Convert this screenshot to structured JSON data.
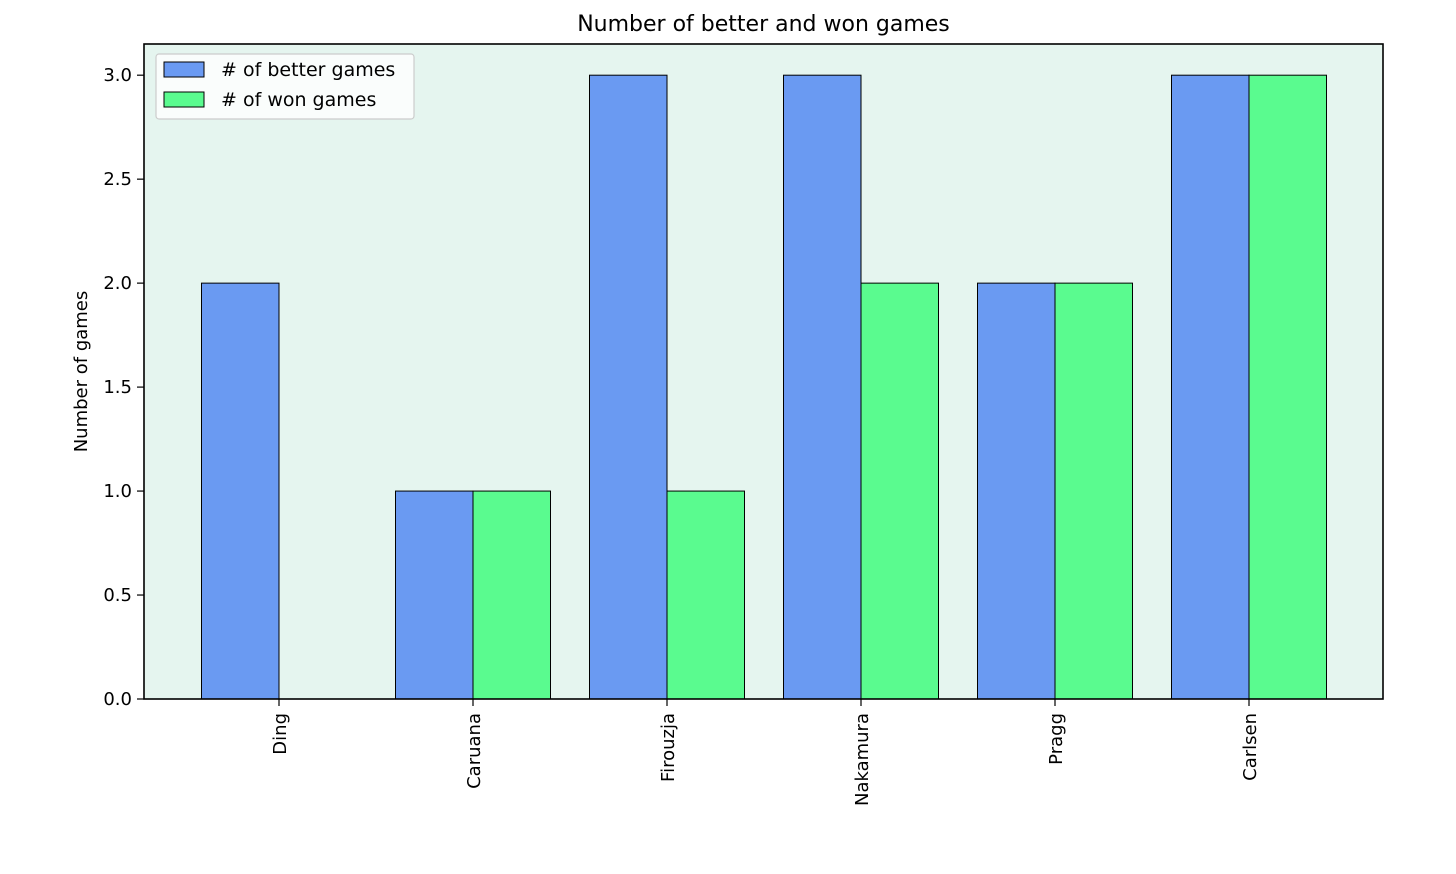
{
  "chart_data": {
    "type": "bar",
    "title": "Number of better and won games",
    "xlabel": "",
    "ylabel": "Number of games",
    "categories": [
      "Ding",
      "Caruana",
      "Firouzja",
      "Nakamura",
      "Pragg",
      "Carlsen"
    ],
    "series": [
      {
        "name": "# of better games",
        "values": [
          2,
          1,
          3,
          3,
          2,
          3
        ],
        "color": "#6a9af2"
      },
      {
        "name": "# of won games",
        "values": [
          0,
          1,
          1,
          2,
          2,
          3
        ],
        "color": "#5afb8f"
      }
    ],
    "ylim": [
      0,
      3.15
    ],
    "yticks": [
      "0.0",
      "0.5",
      "1.0",
      "1.5",
      "2.0",
      "2.5",
      "3.0"
    ],
    "ytick_values": [
      0,
      0.5,
      1.0,
      1.5,
      2.0,
      2.5,
      3.0
    ],
    "plot_background": "#e5f5ef",
    "grid": false,
    "legend_position": "top-left",
    "xtick_rotation": "vertical"
  }
}
